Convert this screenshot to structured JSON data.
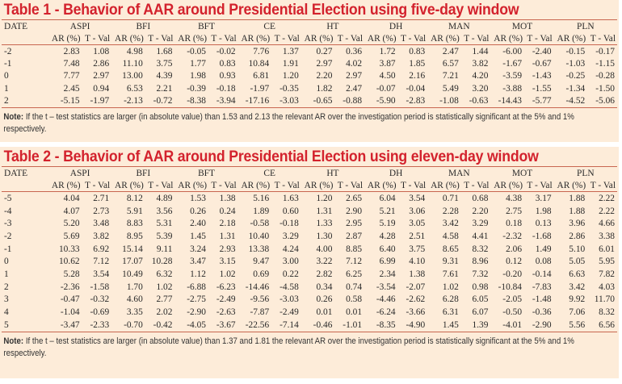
{
  "table1": {
    "title": "Table 1 - Behavior of AAR around Presidential Election using five-day window",
    "date_header": "DATE",
    "groups": [
      "ASPI",
      "BFI",
      "BFT",
      "CE",
      "HT",
      "DH",
      "MAN",
      "MOT",
      "PLN"
    ],
    "sub_headers": [
      "AR (%)",
      "T - Val"
    ],
    "rows": [
      {
        "date": "-2",
        "values": [
          "2.83",
          "1.08",
          "4.98",
          "1.68",
          "-0.05",
          "-0.02",
          "7.76",
          "1.37",
          "0.27",
          "0.36",
          "1.72",
          "0.83",
          "2.47",
          "1.44",
          "-6.00",
          "-2.40",
          "-0.15",
          "-0.17"
        ]
      },
      {
        "date": "-1",
        "values": [
          "7.48",
          "2.86",
          "11.10",
          "3.75",
          "1.77",
          "0.83",
          "10.84",
          "1.91",
          "2.97",
          "4.02",
          "3.87",
          "1.85",
          "6.57",
          "3.82",
          "-1.67",
          "-0.67",
          "-1.03",
          "-1.15"
        ]
      },
      {
        "date": "0",
        "values": [
          "7.77",
          "2.97",
          "13.00",
          "4.39",
          "1.98",
          "0.93",
          "6.81",
          "1.20",
          "2.20",
          "2.97",
          "4.50",
          "2.16",
          "7.21",
          "4.20",
          "-3.59",
          "-1.43",
          "-0.25",
          "-0.28"
        ]
      },
      {
        "date": "1",
        "values": [
          "2.45",
          "0.94",
          "6.53",
          "2.21",
          "-0.39",
          "-0.18",
          "-1.97",
          "-0.35",
          "1.82",
          "2.47",
          "-0.07",
          "-0.04",
          "5.49",
          "3.20",
          "-3.88",
          "-1.55",
          "-1.34",
          "-1.50"
        ]
      },
      {
        "date": "2",
        "values": [
          "-5.15",
          "-1.97",
          "-2.13",
          "-0.72",
          "-8.38",
          "-3.94",
          "-17.16",
          "-3.03",
          "-0.65",
          "-0.88",
          "-5.90",
          "-2.83",
          "-1.08",
          "-0.63",
          "-14.43",
          "-5.77",
          "-4.52",
          "-5.06"
        ]
      }
    ],
    "note_label": "Note:",
    "note_text": " If the t – test statistics are larger (in absolute value) than 1.53 and 2.13 the relevant AR over the investigation period is statistically significant at the 5% and 1% respectively."
  },
  "table2": {
    "title": "Table 2 - Behavior of AAR around Presidential Election using eleven-day window",
    "date_header": "DATE",
    "groups": [
      "ASPI",
      "BFI",
      "BFT",
      "CE",
      "HT",
      "DH",
      "MAN",
      "MOT",
      "PLN"
    ],
    "sub_headers": [
      "AR (%)",
      "T - Val"
    ],
    "rows": [
      {
        "date": "-5",
        "values": [
          "4.04",
          "2.71",
          "8.12",
          "4.89",
          "1.53",
          "1.38",
          "5.16",
          "1.63",
          "1.20",
          "2.65",
          "6.04",
          "3.54",
          "0.71",
          "0.68",
          "4.38",
          "3.17",
          "1.88",
          "2.22"
        ]
      },
      {
        "date": "-4",
        "values": [
          "4.07",
          "2.73",
          "5.91",
          "3.56",
          "0.26",
          "0.24",
          "1.89",
          "0.60",
          "1.31",
          "2.90",
          "5.21",
          "3.06",
          "2.28",
          "2.20",
          "2.75",
          "1.98",
          "1.88",
          "2.22"
        ]
      },
      {
        "date": "-3",
        "values": [
          "5.20",
          "3.48",
          "8.83",
          "5.31",
          "2.40",
          "2.18",
          "-0.58",
          "-0.18",
          "1.33",
          "2.95",
          "5.19",
          "3.05",
          "3.42",
          "3.29",
          "0.18",
          "0.13",
          "3.96",
          "4.66"
        ]
      },
      {
        "date": "-2",
        "values": [
          "5.69",
          "3.82",
          "8.95",
          "5.39",
          "1.45",
          "1.31",
          "10.40",
          "3.29",
          "1.30",
          "2.87",
          "4.28",
          "2.51",
          "4.58",
          "4.41",
          "-2.32",
          "-1.68",
          "2.86",
          "3.38"
        ]
      },
      {
        "date": "-1",
        "values": [
          "10.33",
          "6.92",
          "15.14",
          "9.11",
          "3.24",
          "2.93",
          "13.38",
          "4.24",
          "4.00",
          "8.85",
          "6.40",
          "3.75",
          "8.65",
          "8.32",
          "2.06",
          "1.49",
          "5.10",
          "6.01"
        ]
      },
      {
        "date": "0",
        "values": [
          "10.62",
          "7.12",
          "17.07",
          "10.28",
          "3.47",
          "3.15",
          "9.47",
          "3.00",
          "3.22",
          "7.12",
          "6.99",
          "4.10",
          "9.31",
          "8.96",
          "0.12",
          "0.08",
          "5.05",
          "5.95"
        ]
      },
      {
        "date": "1",
        "values": [
          "5.28",
          "3.54",
          "10.49",
          "6.32",
          "1.12",
          "1.02",
          "0.69",
          "0.22",
          "2.82",
          "6.25",
          "2.34",
          "1.38",
          "7.61",
          "7.32",
          "-0.20",
          "-0.14",
          "6.63",
          "7.82"
        ]
      },
      {
        "date": "2",
        "values": [
          "-2.36",
          "-1.58",
          "1.70",
          "1.02",
          "-6.88",
          "-6.23",
          "-14.46",
          "-4.58",
          "0.34",
          "0.74",
          "-3.54",
          "-2.07",
          "1.02",
          "0.98",
          "-10.84",
          "-7.83",
          "3.42",
          "4.03"
        ]
      },
      {
        "date": "3",
        "values": [
          "-0.47",
          "-0.32",
          "4.60",
          "2.77",
          "-2.75",
          "-2.49",
          "-9.56",
          "-3.03",
          "0.26",
          "0.58",
          "-4.46",
          "-2.62",
          "6.28",
          "6.05",
          "-2.05",
          "-1.48",
          "9.92",
          "11.70"
        ]
      },
      {
        "date": "4",
        "values": [
          "-1.04",
          "-0.69",
          "3.35",
          "2.02",
          "-2.90",
          "-2.63",
          "-7.87",
          "-2.49",
          "0.01",
          "0.01",
          "-6.24",
          "-3.66",
          "6.31",
          "6.07",
          "-0.50",
          "-0.36",
          "7.06",
          "8.32"
        ]
      },
      {
        "date": "5",
        "values": [
          "-3.47",
          "-2.33",
          "-0.70",
          "-0.42",
          "-4.05",
          "-3.67",
          "-22.56",
          "-7.14",
          "-0.46",
          "-1.01",
          "-8.35",
          "-4.90",
          "1.45",
          "1.39",
          "-4.01",
          "-2.90",
          "5.56",
          "6.56"
        ]
      }
    ],
    "note_label": "Note:",
    "note_text": " If the t – test statistics are larger (in absolute value) than 1.37 and 1.81 the relevant AR over the investigation period is statistically significant at the 5% and 1% respectively."
  },
  "colors": {
    "title": "#d3222d",
    "panel_bg": "#fdecd9",
    "rule": "#c86650"
  }
}
